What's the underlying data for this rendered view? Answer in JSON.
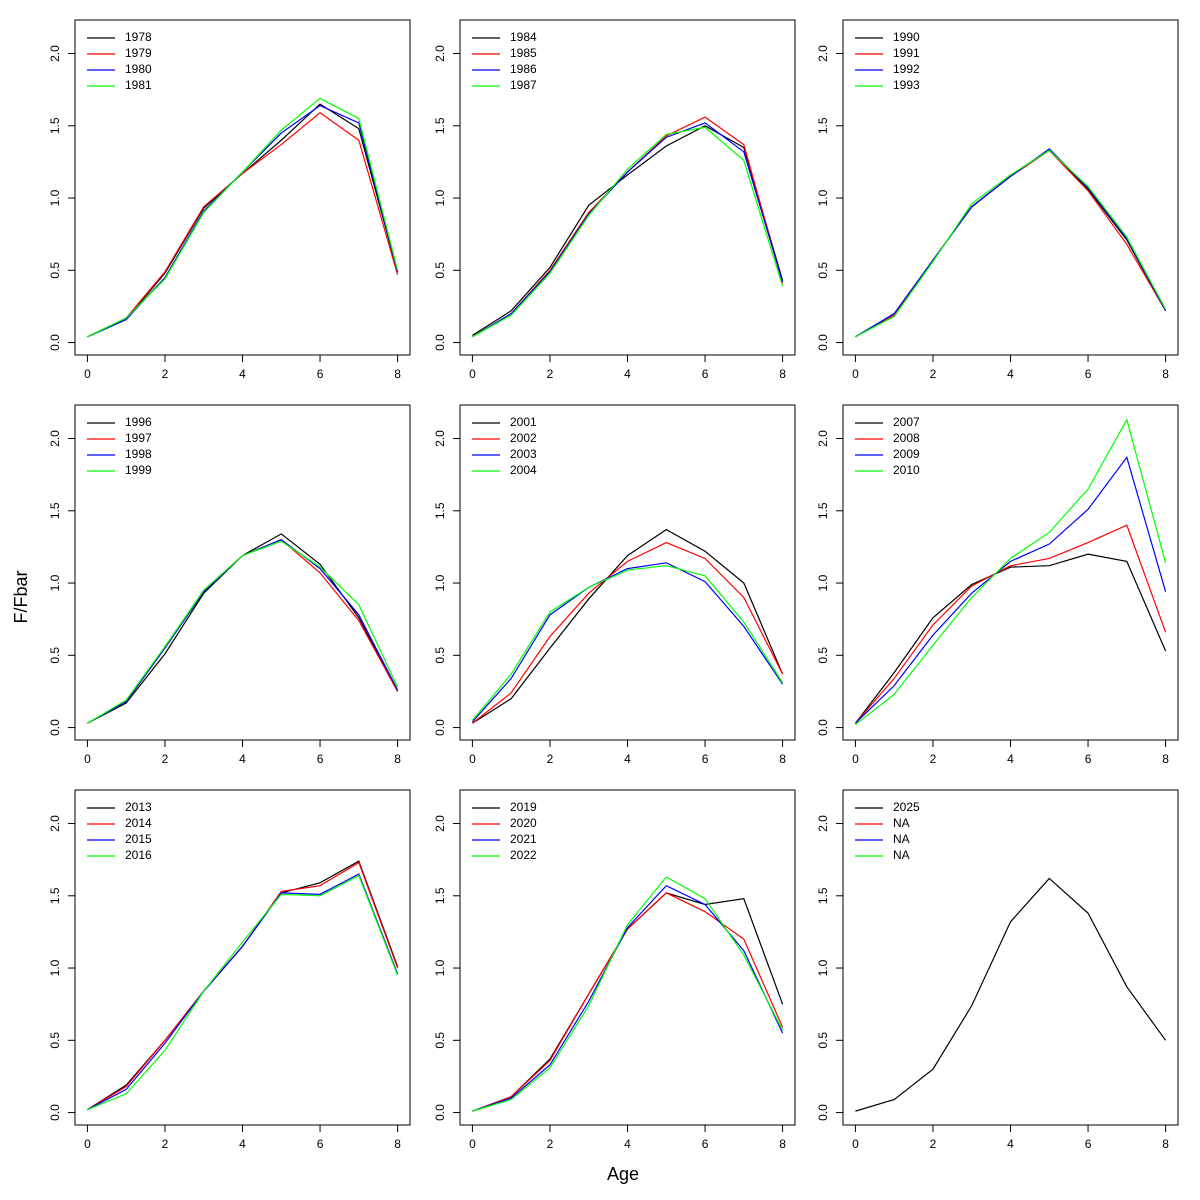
{
  "ylabel": "F/Fbar",
  "xlabel": "Age",
  "chart_data": [
    {
      "type": "line",
      "x": [
        0,
        1,
        2,
        3,
        4,
        5,
        6,
        7,
        8
      ],
      "xlim": [
        -0.32,
        8.32
      ],
      "ylim": [
        -0.086,
        2.232
      ],
      "xticks": [
        0,
        2,
        4,
        6,
        8
      ],
      "yticks": [
        {
          "value": 0,
          "label": "0.0"
        },
        0.5,
        {
          "value": 1,
          "label": "1.0"
        },
        1.5,
        {
          "value": 2,
          "label": "2.0"
        }
      ],
      "legend": "top-left",
      "series": [
        {
          "name": "1978",
          "color": "#000000",
          "values": [
            0.04,
            0.16,
            0.48,
            0.93,
            1.17,
            1.4,
            1.65,
            1.48,
            0.49
          ]
        },
        {
          "name": "1979",
          "color": "#ff0000",
          "values": [
            0.04,
            0.17,
            0.49,
            0.94,
            1.17,
            1.37,
            1.59,
            1.4,
            0.47
          ]
        },
        {
          "name": "1980",
          "color": "#0000ff",
          "values": [
            0.04,
            0.16,
            0.45,
            0.91,
            1.18,
            1.45,
            1.64,
            1.52,
            0.49
          ]
        },
        {
          "name": "1981",
          "color": "#00ff00",
          "values": [
            0.04,
            0.17,
            0.44,
            0.9,
            1.18,
            1.47,
            1.69,
            1.55,
            0.5
          ]
        }
      ]
    },
    {
      "type": "line",
      "x": [
        0,
        1,
        2,
        3,
        4,
        5,
        6,
        7,
        8
      ],
      "xlim": [
        -0.32,
        8.32
      ],
      "ylim": [
        -0.086,
        2.232
      ],
      "xticks": [
        0,
        2,
        4,
        6,
        8
      ],
      "yticks": [
        {
          "value": 0,
          "label": "0.0"
        },
        0.5,
        {
          "value": 1,
          "label": "1.0"
        },
        1.5,
        {
          "value": 2,
          "label": "2.0"
        }
      ],
      "legend": "top-left",
      "series": [
        {
          "name": "1984",
          "color": "#000000",
          "values": [
            0.05,
            0.22,
            0.52,
            0.95,
            1.16,
            1.36,
            1.5,
            1.35,
            0.43
          ]
        },
        {
          "name": "1985",
          "color": "#ff0000",
          "values": [
            0.04,
            0.2,
            0.5,
            0.9,
            1.18,
            1.43,
            1.56,
            1.37,
            0.41
          ]
        },
        {
          "name": "1986",
          "color": "#0000ff",
          "values": [
            0.04,
            0.2,
            0.49,
            0.89,
            1.18,
            1.42,
            1.52,
            1.32,
            0.42
          ]
        },
        {
          "name": "1987",
          "color": "#00ff00",
          "values": [
            0.04,
            0.19,
            0.48,
            0.88,
            1.2,
            1.44,
            1.49,
            1.26,
            0.39
          ]
        }
      ]
    },
    {
      "type": "line",
      "x": [
        0,
        1,
        2,
        3,
        4,
        5,
        6,
        7,
        8
      ],
      "xlim": [
        -0.32,
        8.32
      ],
      "ylim": [
        -0.086,
        2.232
      ],
      "xticks": [
        0,
        2,
        4,
        6,
        8
      ],
      "yticks": [
        {
          "value": 0,
          "label": "0.0"
        },
        0.5,
        {
          "value": 1,
          "label": "1.0"
        },
        1.5,
        {
          "value": 2,
          "label": "2.0"
        }
      ],
      "legend": "top-left",
      "series": [
        {
          "name": "1990",
          "color": "#000000",
          "values": [
            0.04,
            0.2,
            0.57,
            0.94,
            1.15,
            1.33,
            1.06,
            0.71,
            0.22
          ]
        },
        {
          "name": "1991",
          "color": "#ff0000",
          "values": [
            0.04,
            0.19,
            0.57,
            0.94,
            1.15,
            1.33,
            1.05,
            0.68,
            0.22
          ]
        },
        {
          "name": "1992",
          "color": "#0000ff",
          "values": [
            0.04,
            0.2,
            0.57,
            0.94,
            1.15,
            1.34,
            1.07,
            0.72,
            0.22
          ]
        },
        {
          "name": "1993",
          "color": "#00ff00",
          "values": [
            0.04,
            0.18,
            0.56,
            0.96,
            1.16,
            1.33,
            1.08,
            0.73,
            0.23
          ]
        }
      ]
    },
    {
      "type": "line",
      "x": [
        0,
        1,
        2,
        3,
        4,
        5,
        6,
        7,
        8
      ],
      "xlim": [
        -0.32,
        8.32
      ],
      "ylim": [
        -0.086,
        2.232
      ],
      "xticks": [
        0,
        2,
        4,
        6,
        8
      ],
      "yticks": [
        {
          "value": 0,
          "label": "0.0"
        },
        0.5,
        {
          "value": 1,
          "label": "1.0"
        },
        1.5,
        {
          "value": 2,
          "label": "2.0"
        }
      ],
      "legend": "top-left",
      "series": [
        {
          "name": "1996",
          "color": "#000000",
          "values": [
            0.03,
            0.17,
            0.51,
            0.93,
            1.19,
            1.34,
            1.13,
            0.76,
            0.25
          ]
        },
        {
          "name": "1997",
          "color": "#ff0000",
          "values": [
            0.03,
            0.18,
            0.55,
            0.95,
            1.19,
            1.3,
            1.07,
            0.74,
            0.25
          ]
        },
        {
          "name": "1998",
          "color": "#0000ff",
          "values": [
            0.03,
            0.18,
            0.55,
            0.94,
            1.19,
            1.3,
            1.1,
            0.78,
            0.26
          ]
        },
        {
          "name": "1999",
          "color": "#00ff00",
          "values": [
            0.03,
            0.19,
            0.56,
            0.95,
            1.19,
            1.29,
            1.11,
            0.85,
            0.28
          ]
        }
      ]
    },
    {
      "type": "line",
      "x": [
        0,
        1,
        2,
        3,
        4,
        5,
        6,
        7,
        8
      ],
      "xlim": [
        -0.32,
        8.32
      ],
      "ylim": [
        -0.086,
        2.232
      ],
      "xticks": [
        0,
        2,
        4,
        6,
        8
      ],
      "yticks": [
        {
          "value": 0,
          "label": "0.0"
        },
        0.5,
        {
          "value": 1,
          "label": "1.0"
        },
        1.5,
        {
          "value": 2,
          "label": "2.0"
        }
      ],
      "legend": "top-left",
      "series": [
        {
          "name": "2001",
          "color": "#000000",
          "values": [
            0.03,
            0.2,
            0.55,
            0.89,
            1.19,
            1.37,
            1.22,
            1.0,
            0.37
          ]
        },
        {
          "name": "2002",
          "color": "#ff0000",
          "values": [
            0.03,
            0.24,
            0.63,
            0.93,
            1.15,
            1.28,
            1.17,
            0.9,
            0.37
          ]
        },
        {
          "name": "2003",
          "color": "#0000ff",
          "values": [
            0.04,
            0.34,
            0.78,
            0.97,
            1.1,
            1.14,
            1.01,
            0.7,
            0.3
          ]
        },
        {
          "name": "2004",
          "color": "#00ff00",
          "values": [
            0.05,
            0.37,
            0.8,
            0.97,
            1.09,
            1.12,
            1.05,
            0.73,
            0.31
          ]
        }
      ]
    },
    {
      "type": "line",
      "x": [
        0,
        1,
        2,
        3,
        4,
        5,
        6,
        7,
        8
      ],
      "xlim": [
        -0.32,
        8.32
      ],
      "ylim": [
        -0.086,
        2.232
      ],
      "xticks": [
        0,
        2,
        4,
        6,
        8
      ],
      "yticks": [
        {
          "value": 0,
          "label": "0.0"
        },
        0.5,
        {
          "value": 1,
          "label": "1.0"
        },
        1.5,
        {
          "value": 2,
          "label": "2.0"
        }
      ],
      "legend": "top-left",
      "series": [
        {
          "name": "2007",
          "color": "#000000",
          "values": [
            0.03,
            0.38,
            0.76,
            0.99,
            1.11,
            1.12,
            1.2,
            1.15,
            0.53
          ]
        },
        {
          "name": "2008",
          "color": "#ff0000",
          "values": [
            0.03,
            0.34,
            0.71,
            0.98,
            1.12,
            1.17,
            1.28,
            1.4,
            0.66
          ]
        },
        {
          "name": "2009",
          "color": "#0000ff",
          "values": [
            0.03,
            0.29,
            0.64,
            0.93,
            1.15,
            1.27,
            1.51,
            1.87,
            0.94
          ]
        },
        {
          "name": "2010",
          "color": "#00ff00",
          "values": [
            0.02,
            0.23,
            0.57,
            0.9,
            1.17,
            1.35,
            1.65,
            2.13,
            1.14
          ]
        }
      ]
    },
    {
      "type": "line",
      "x": [
        0,
        1,
        2,
        3,
        4,
        5,
        6,
        7,
        8
      ],
      "xlim": [
        -0.32,
        8.32
      ],
      "ylim": [
        -0.086,
        2.232
      ],
      "xticks": [
        0,
        2,
        4,
        6,
        8
      ],
      "yticks": [
        {
          "value": 0,
          "label": "0.0"
        },
        0.5,
        {
          "value": 1,
          "label": "1.0"
        },
        1.5,
        {
          "value": 2,
          "label": "2.0"
        }
      ],
      "legend": "top-left",
      "series": [
        {
          "name": "2013",
          "color": "#000000",
          "values": [
            0.02,
            0.19,
            0.5,
            0.84,
            1.15,
            1.52,
            1.59,
            1.74,
            1.01
          ]
        },
        {
          "name": "2014",
          "color": "#ff0000",
          "values": [
            0.02,
            0.18,
            0.5,
            0.84,
            1.15,
            1.53,
            1.57,
            1.73,
            1.0
          ]
        },
        {
          "name": "2015",
          "color": "#0000ff",
          "values": [
            0.02,
            0.16,
            0.48,
            0.84,
            1.15,
            1.52,
            1.51,
            1.65,
            0.96
          ]
        },
        {
          "name": "2016",
          "color": "#00ff00",
          "values": [
            0.02,
            0.13,
            0.43,
            0.84,
            1.18,
            1.51,
            1.5,
            1.64,
            0.95
          ]
        }
      ]
    },
    {
      "type": "line",
      "x": [
        0,
        1,
        2,
        3,
        4,
        5,
        6,
        7,
        8
      ],
      "xlim": [
        -0.32,
        8.32
      ],
      "ylim": [
        -0.086,
        2.232
      ],
      "xticks": [
        0,
        2,
        4,
        6,
        8
      ],
      "yticks": [
        {
          "value": 0,
          "label": "0.0"
        },
        0.5,
        {
          "value": 1,
          "label": "1.0"
        },
        1.5,
        {
          "value": 2,
          "label": "2.0"
        }
      ],
      "legend": "top-left",
      "series": [
        {
          "name": "2019",
          "color": "#000000",
          "values": [
            0.01,
            0.11,
            0.37,
            0.82,
            1.27,
            1.52,
            1.44,
            1.48,
            0.75
          ]
        },
        {
          "name": "2020",
          "color": "#ff0000",
          "values": [
            0.01,
            0.11,
            0.36,
            0.82,
            1.27,
            1.52,
            1.39,
            1.2,
            0.59
          ]
        },
        {
          "name": "2021",
          "color": "#0000ff",
          "values": [
            0.01,
            0.1,
            0.33,
            0.77,
            1.28,
            1.57,
            1.44,
            1.12,
            0.55
          ]
        },
        {
          "name": "2022",
          "color": "#00ff00",
          "values": [
            0.01,
            0.09,
            0.31,
            0.74,
            1.3,
            1.63,
            1.48,
            1.09,
            0.57
          ]
        }
      ]
    },
    {
      "type": "line",
      "x": [
        0,
        1,
        2,
        3,
        4,
        5,
        6,
        7,
        8
      ],
      "xlim": [
        -0.32,
        8.32
      ],
      "ylim": [
        -0.086,
        2.232
      ],
      "xticks": [
        0,
        2,
        4,
        6,
        8
      ],
      "yticks": [
        {
          "value": 0,
          "label": "0.0"
        },
        0.5,
        {
          "value": 1,
          "label": "1.0"
        },
        1.5,
        {
          "value": 2,
          "label": "2.0"
        }
      ],
      "legend": "top-left",
      "series": [
        {
          "name": "2025",
          "color": "#000000",
          "values": [
            0.01,
            0.09,
            0.3,
            0.74,
            1.32,
            1.62,
            1.38,
            0.87,
            0.5
          ]
        },
        {
          "name": "NA",
          "color": "#ff0000",
          "values": [
            null,
            null,
            null,
            null,
            null,
            null,
            null,
            null,
            null
          ]
        },
        {
          "name": "NA",
          "color": "#0000ff",
          "values": [
            null,
            null,
            null,
            null,
            null,
            null,
            null,
            null,
            null
          ]
        },
        {
          "name": "NA",
          "color": "#00ff00",
          "values": [
            null,
            null,
            null,
            null,
            null,
            null,
            null,
            null,
            null
          ]
        }
      ]
    }
  ]
}
